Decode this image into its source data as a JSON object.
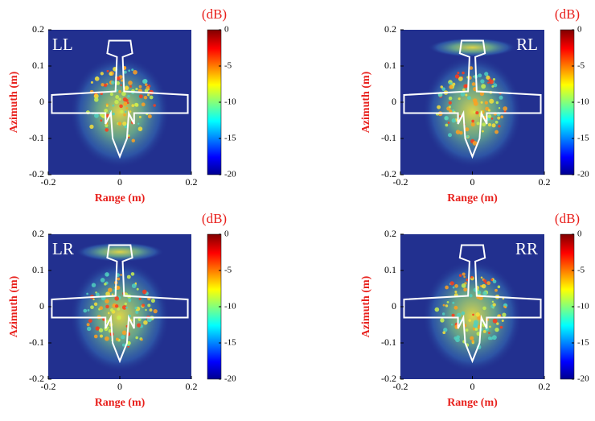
{
  "chart_data": [
    {
      "type": "heatmap",
      "label": "LL",
      "xlabel": "Range (m)",
      "ylabel": "Azimuth (m)",
      "xlim": [
        -0.2,
        0.2
      ],
      "ylim": [
        -0.2,
        0.2
      ],
      "xticks": [
        -0.2,
        0,
        0.2
      ],
      "yticks": [
        0.2,
        0.1,
        0,
        -0.1,
        -0.2
      ],
      "colorbar": {
        "label": "(dB)",
        "lim": [
          -20,
          0
        ],
        "ticks": [
          0,
          -5,
          -10,
          -15,
          -20
        ]
      }
    },
    {
      "type": "heatmap",
      "label": "RL",
      "xlabel": "Range (m)",
      "ylabel": "Azimuth (m)",
      "xlim": [
        -0.2,
        0.2
      ],
      "ylim": [
        -0.2,
        0.2
      ],
      "xticks": [
        -0.2,
        0,
        0.2
      ],
      "yticks": [
        0.2,
        0.1,
        0,
        -0.1,
        -0.2
      ],
      "colorbar": {
        "label": "(dB)",
        "lim": [
          -20,
          0
        ],
        "ticks": [
          0,
          -5,
          -10,
          -15,
          -20
        ]
      }
    },
    {
      "type": "heatmap",
      "label": "LR",
      "xlabel": "Range (m)",
      "ylabel": "Azimuth (m)",
      "xlim": [
        -0.2,
        0.2
      ],
      "ylim": [
        -0.2,
        0.2
      ],
      "xticks": [
        -0.2,
        0,
        0.2
      ],
      "yticks": [
        0.2,
        0.1,
        0,
        -0.1,
        -0.2
      ],
      "colorbar": {
        "label": "(dB)",
        "lim": [
          -20,
          0
        ],
        "ticks": [
          0,
          -5,
          -10,
          -15,
          -20
        ]
      }
    },
    {
      "type": "heatmap",
      "label": "RR",
      "xlabel": "Range (m)",
      "ylabel": "Azimuth (m)",
      "xlim": [
        -0.2,
        0.2
      ],
      "ylim": [
        -0.2,
        0.2
      ],
      "xticks": [
        -0.2,
        0,
        0.2
      ],
      "yticks": [
        0.2,
        0.1,
        0,
        -0.1,
        -0.2
      ],
      "colorbar": {
        "label": "(dB)",
        "lim": [
          -20,
          0
        ],
        "ticks": [
          0,
          -5,
          -10,
          -15,
          -20
        ]
      }
    }
  ]
}
